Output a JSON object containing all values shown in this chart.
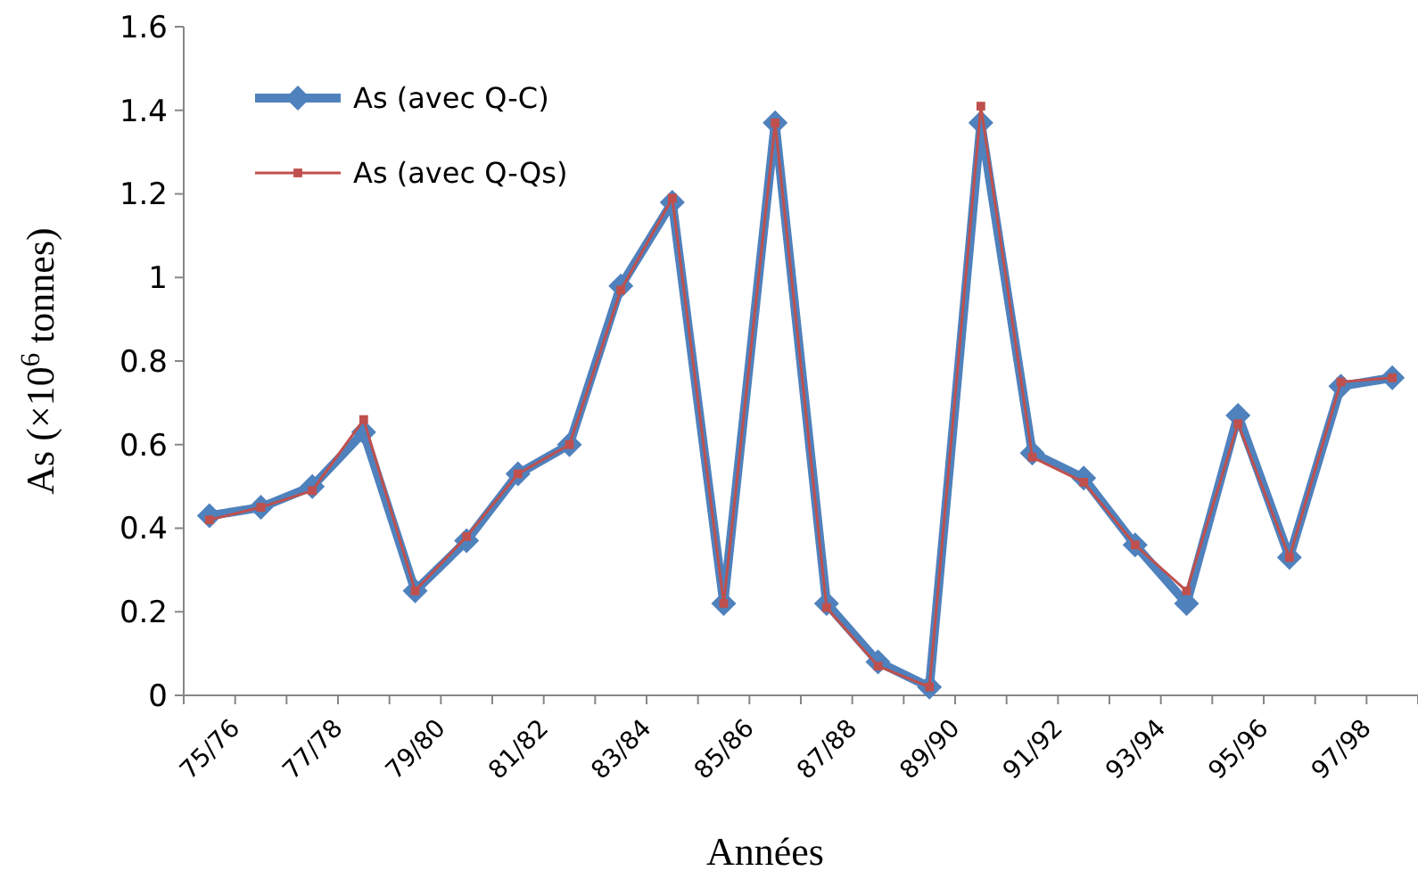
{
  "chart_data": {
    "type": "line",
    "xlabel": "Années",
    "ylabel": "As (×10$^{6}$ tonnes)",
    "categories": [
      "75/76",
      null,
      "77/78",
      null,
      "79/80",
      null,
      "81/82",
      null,
      "83/84",
      null,
      "85/86",
      null,
      "87/88",
      null,
      "89/90",
      null,
      "91/92",
      null,
      "93/94",
      null,
      "95/96",
      null,
      "97/98",
      null
    ],
    "series": [
      {
        "name": "As (avec Q-C)",
        "color": "#4f81bd",
        "marker": "diamond",
        "values": [
          0.43,
          0.45,
          0.5,
          0.63,
          0.25,
          0.37,
          0.53,
          0.6,
          0.98,
          1.18,
          0.22,
          1.37,
          0.22,
          0.08,
          0.02,
          1.37,
          0.58,
          0.52,
          0.36,
          0.22,
          0.67,
          0.33,
          0.74,
          0.76
        ]
      },
      {
        "name": "As (avec Q-Qs)",
        "color": "#c0504d",
        "marker": "square",
        "values": [
          0.42,
          0.45,
          0.49,
          0.66,
          0.25,
          0.38,
          0.53,
          0.6,
          0.97,
          1.19,
          0.22,
          1.37,
          0.21,
          0.07,
          0.02,
          1.41,
          0.57,
          0.51,
          0.36,
          0.25,
          0.65,
          0.33,
          0.75,
          0.76
        ]
      }
    ],
    "ylim": [
      0,
      1.6
    ],
    "yticks": [
      0,
      0.2,
      0.4,
      0.6,
      0.8,
      1,
      1.2,
      1.4,
      1.6
    ],
    "grid": false,
    "legend": "top left"
  }
}
